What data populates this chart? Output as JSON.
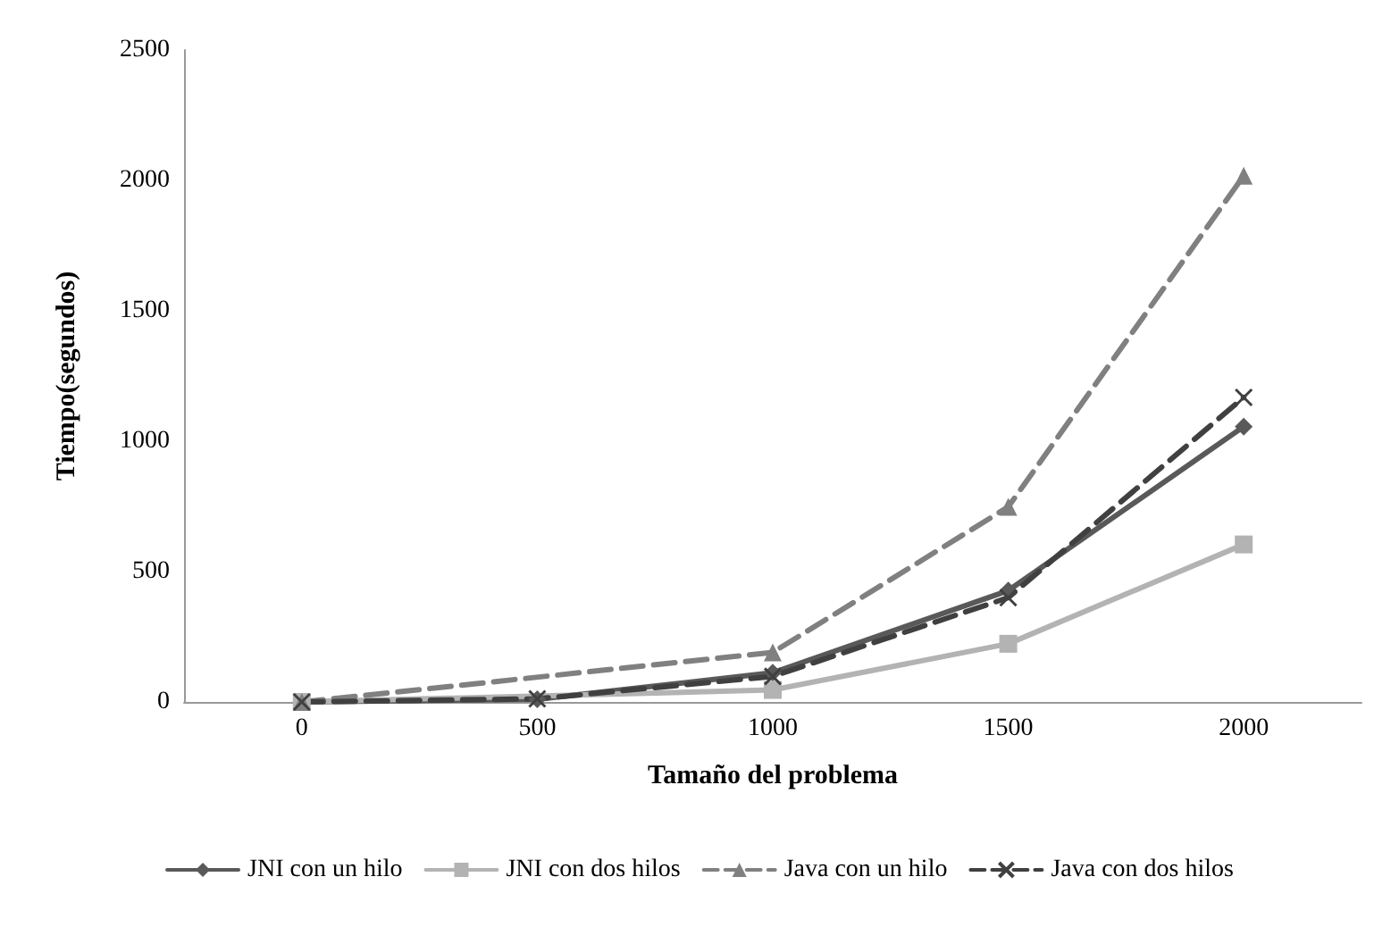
{
  "chart_data": {
    "type": "line",
    "xlabel": "Tamaño del problema",
    "ylabel": "Tiempo(segundos)",
    "categories": [
      "0",
      "500",
      "1000",
      "1500",
      "2000"
    ],
    "ylim": [
      0,
      2500
    ],
    "yticks": [
      0,
      500,
      1000,
      1500,
      2000,
      2500
    ],
    "grid": false,
    "legend": "bottom",
    "series": [
      {
        "name": "JNI con un hilo",
        "color": "#595959",
        "marker": "diamond",
        "line_style": "solid",
        "values": [
          0,
          10,
          112,
          427,
          1056
        ]
      },
      {
        "name": "JNI con dos hilos",
        "color": "#b3b3b3",
        "marker": "square",
        "line_style": "solid",
        "values": [
          0,
          null,
          46,
          223,
          604
        ]
      },
      {
        "name": "Java con un hilo",
        "color": "#808080",
        "marker": "triangle",
        "line_style": "dashed",
        "values": [
          0,
          null,
          190,
          748,
          2018
        ]
      },
      {
        "name": "Java con dos hilos",
        "color": "#404040",
        "marker": "cross",
        "line_style": "dashed",
        "values": [
          0,
          12,
          98,
          400,
          1168
        ]
      }
    ]
  }
}
